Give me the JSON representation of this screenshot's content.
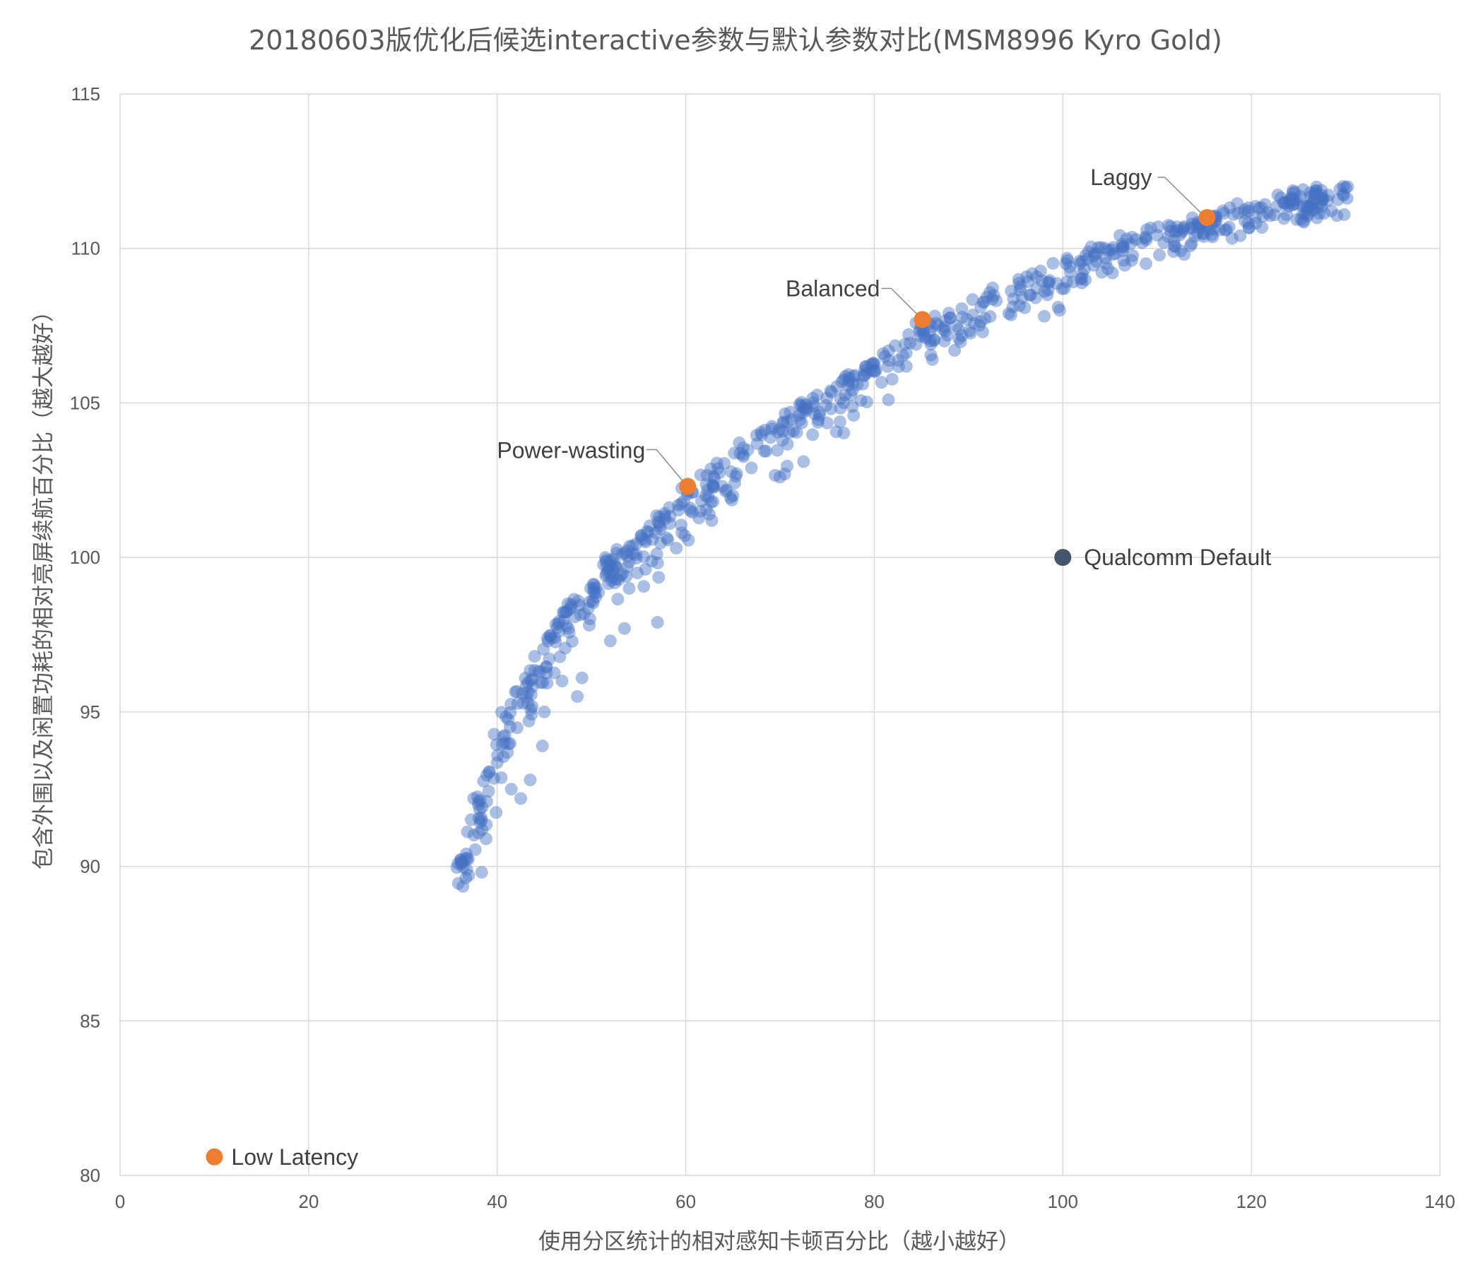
{
  "chart_data": {
    "type": "scatter",
    "title": "20180603版优化后候选interactive参数与默认参数对比(MSM8996 Kyro Gold)",
    "xlabel": "使用分区统计的相对感知卡顿百分比（越小越好）",
    "ylabel": "包含外围以及闲置功耗的相对亮屏续航百分比（越大越好）",
    "xlim": [
      0,
      140
    ],
    "ylim": [
      80,
      115
    ],
    "x_ticks": [
      "0",
      "20",
      "40",
      "60",
      "80",
      "100",
      "120",
      "140"
    ],
    "y_ticks": [
      "80",
      "85",
      "90",
      "95",
      "100",
      "105",
      "110",
      "115"
    ],
    "grid": true,
    "colors": {
      "candidates": "#4472c4",
      "highlight": "#ed7d31",
      "default": "#44546a"
    },
    "candidate_cloud": {
      "trend": [
        [
          36,
          90
        ],
        [
          37,
          90.6
        ],
        [
          38,
          91.8
        ],
        [
          39,
          93.2
        ],
        [
          40,
          94.2
        ],
        [
          42,
          95.6
        ],
        [
          44,
          96.6
        ],
        [
          46,
          97.6
        ],
        [
          48,
          98.5
        ],
        [
          50,
          99.3
        ],
        [
          52,
          99.9
        ],
        [
          55,
          100.7
        ],
        [
          58,
          101.5
        ],
        [
          60,
          102.1
        ],
        [
          63,
          102.9
        ],
        [
          66,
          103.6
        ],
        [
          70,
          104.4
        ],
        [
          75,
          105.4
        ],
        [
          80,
          106.3
        ],
        [
          85,
          107.5
        ],
        [
          90,
          108.2
        ],
        [
          95,
          108.9
        ],
        [
          100,
          109.6
        ],
        [
          105,
          110.2
        ],
        [
          110,
          110.6
        ],
        [
          115,
          111.0
        ],
        [
          120,
          111.4
        ],
        [
          125,
          111.75
        ],
        [
          130,
          112.0
        ]
      ],
      "outliers": [
        [
          37.5,
          92.2
        ],
        [
          41.5,
          92.5
        ],
        [
          42.5,
          92.2
        ],
        [
          43.5,
          92.8
        ],
        [
          44.8,
          93.9
        ],
        [
          45.0,
          95.0
        ],
        [
          48.5,
          95.5
        ],
        [
          49.0,
          96.1
        ],
        [
          52.0,
          97.3
        ],
        [
          53.5,
          97.7
        ],
        [
          57.0,
          97.9
        ],
        [
          54.0,
          99.0
        ],
        [
          59.0,
          100.3
        ],
        [
          62.5,
          101.4
        ],
        [
          65.0,
          102.0
        ],
        [
          70.0,
          102.6
        ],
        [
          70.5,
          102.7
        ],
        [
          72.5,
          103.1
        ],
        [
          81.5,
          105.1
        ],
        [
          99.5,
          108.1
        ],
        [
          91.5,
          107.3
        ],
        [
          86.0,
          106.9
        ]
      ]
    },
    "labeled_points": [
      {
        "label": "Low Latency",
        "x": 10,
        "y": 80.6,
        "series": "highlight"
      },
      {
        "label": "Power-wasting",
        "x": 60.2,
        "y": 102.3,
        "series": "highlight"
      },
      {
        "label": "Balanced",
        "x": 85.1,
        "y": 107.7,
        "series": "highlight"
      },
      {
        "label": "Laggy",
        "x": 115.3,
        "y": 111.0,
        "series": "highlight"
      },
      {
        "label": "Qualcomm Default",
        "x": 100,
        "y": 100,
        "series": "default"
      }
    ]
  }
}
